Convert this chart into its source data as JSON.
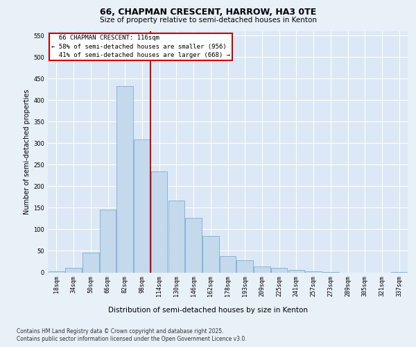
{
  "title": "66, CHAPMAN CRESCENT, HARROW, HA3 0TE",
  "subtitle": "Size of property relative to semi-detached houses in Kenton",
  "xlabel": "Distribution of semi-detached houses by size in Kenton",
  "ylabel": "Number of semi-detached properties",
  "footer_line1": "Contains HM Land Registry data © Crown copyright and database right 2025.",
  "footer_line2": "Contains public sector information licensed under the Open Government Licence v3.0.",
  "categories": [
    "18sqm",
    "34sqm",
    "50sqm",
    "66sqm",
    "82sqm",
    "98sqm",
    "114sqm",
    "130sqm",
    "146sqm",
    "162sqm",
    "178sqm",
    "193sqm",
    "209sqm",
    "225sqm",
    "241sqm",
    "257sqm",
    "273sqm",
    "289sqm",
    "305sqm",
    "321sqm",
    "337sqm"
  ],
  "values": [
    3,
    10,
    46,
    146,
    433,
    309,
    235,
    167,
    127,
    85,
    38,
    29,
    13,
    10,
    6,
    2,
    1,
    0,
    0,
    0,
    1
  ],
  "bar_color": "#c5d9ec",
  "bar_edge_color": "#7aadd4",
  "vline_color": "#cc0000",
  "property_name": "66 CHAPMAN CRESCENT: 116sqm",
  "smaller_text": "← 58% of semi-detached houses are smaller (956)",
  "larger_text": "41% of semi-detached houses are larger (668) →",
  "annotation_box_color": "#cc0000",
  "ylim": [
    0,
    560
  ],
  "yticks": [
    0,
    50,
    100,
    150,
    200,
    250,
    300,
    350,
    400,
    450,
    500,
    550
  ],
  "bg_color": "#e8f0f8",
  "plot_bg_color": "#dce8f5",
  "grid_color": "#ffffff",
  "title_fontsize": 9,
  "subtitle_fontsize": 7.5,
  "ylabel_fontsize": 7,
  "xlabel_fontsize": 7.5,
  "tick_fontsize": 6,
  "ann_fontsize": 6.5,
  "footer_fontsize": 5.5
}
